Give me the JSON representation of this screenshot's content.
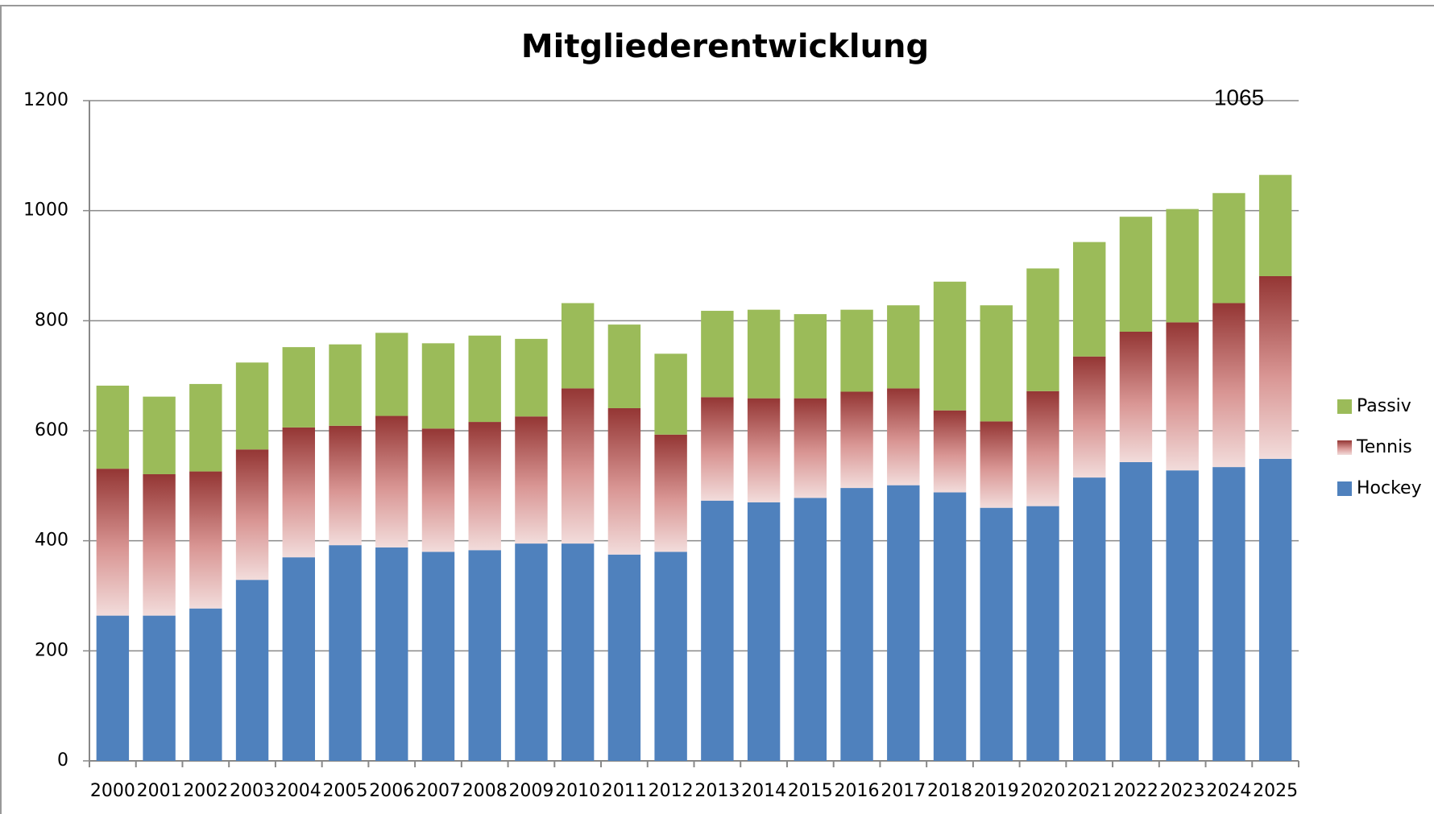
{
  "chart_data": {
    "type": "stacked_bar",
    "title": "Mitgliederentwicklung",
    "annotation": "1065",
    "categories": [
      "2000",
      "2001",
      "2002",
      "2003",
      "2004",
      "2005",
      "2006",
      "2007",
      "2008",
      "2009",
      "2010",
      "2011",
      "2012",
      "2013",
      "2014",
      "2015",
      "2016",
      "2017",
      "2018",
      "2019",
      "2020",
      "2021",
      "2022",
      "2023",
      "2024",
      "2025"
    ],
    "series": [
      {
        "name": "Hockey",
        "color": "#4f81bd",
        "values": [
          264,
          264,
          277,
          329,
          370,
          392,
          388,
          380,
          383,
          395,
          395,
          375,
          380,
          473,
          470,
          478,
          496,
          501,
          488,
          460,
          463,
          515,
          543,
          528,
          534,
          549
        ]
      },
      {
        "name": "Tennis",
        "color": "#943634",
        "values": [
          267,
          257,
          249,
          237,
          236,
          217,
          239,
          224,
          233,
          231,
          282,
          266,
          213,
          188,
          189,
          181,
          175,
          176,
          149,
          157,
          209,
          220,
          237,
          269,
          298,
          332
        ]
      },
      {
        "name": "Passiv",
        "color": "#9bbb59",
        "values": [
          151,
          141,
          159,
          158,
          146,
          148,
          151,
          155,
          157,
          141,
          155,
          152,
          147,
          157,
          161,
          153,
          149,
          151,
          234,
          211,
          223,
          208,
          209,
          206,
          200,
          184
        ]
      }
    ],
    "ylim": [
      0,
      1200
    ],
    "yticks": [
      0,
      200,
      400,
      600,
      800,
      1000,
      1200
    ],
    "grid": true,
    "legend": "right"
  }
}
